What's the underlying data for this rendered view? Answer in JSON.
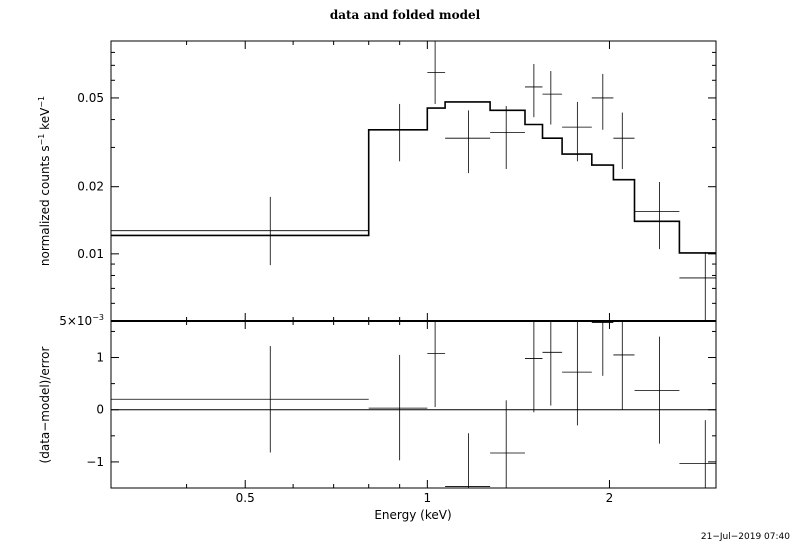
{
  "chart_data": [
    {
      "type": "line",
      "panel": "top",
      "title": "data and folded model",
      "xlabel": "",
      "ylabel": "normalized counts s",
      "ylabel_sup1": "−1",
      "ylabel_mid": " keV",
      "ylabel_sup2": "−1",
      "x_scale": "log",
      "y_scale": "log",
      "xlim": [
        0.3,
        3.0
      ],
      "ylim": [
        0.005,
        0.09
      ],
      "y_ticks": [
        {
          "value": 0.005,
          "label": "5×10",
          "exp": "−3"
        },
        {
          "value": 0.01,
          "label": "0.01",
          "exp": ""
        },
        {
          "value": 0.02,
          "label": "0.02",
          "exp": ""
        },
        {
          "value": 0.05,
          "label": "0.05",
          "exp": ""
        }
      ],
      "data_points": [
        {
          "x": 0.55,
          "xlo": 0.3,
          "xhi": 0.8,
          "y": 0.0127,
          "ylo": 0.0089,
          "yhi": 0.018
        },
        {
          "x": 0.9,
          "xlo": 0.8,
          "xhi": 1.0,
          "y": 0.036,
          "ylo": 0.026,
          "yhi": 0.047
        },
        {
          "x": 1.03,
          "xlo": 1.0,
          "xhi": 1.07,
          "y": 0.065,
          "ylo": 0.047,
          "yhi": 0.09
        },
        {
          "x": 1.17,
          "xlo": 1.07,
          "xhi": 1.27,
          "y": 0.033,
          "ylo": 0.023,
          "yhi": 0.044
        },
        {
          "x": 1.35,
          "xlo": 1.27,
          "xhi": 1.45,
          "y": 0.035,
          "ylo": 0.024,
          "yhi": 0.046
        },
        {
          "x": 1.5,
          "xlo": 1.45,
          "xhi": 1.55,
          "y": 0.056,
          "ylo": 0.041,
          "yhi": 0.071
        },
        {
          "x": 1.6,
          "xlo": 1.55,
          "xhi": 1.67,
          "y": 0.052,
          "ylo": 0.038,
          "yhi": 0.066
        },
        {
          "x": 1.77,
          "xlo": 1.67,
          "xhi": 1.87,
          "y": 0.037,
          "ylo": 0.026,
          "yhi": 0.048
        },
        {
          "x": 1.95,
          "xlo": 1.87,
          "xhi": 2.03,
          "y": 0.05,
          "ylo": 0.036,
          "yhi": 0.064
        },
        {
          "x": 2.1,
          "xlo": 2.03,
          "xhi": 2.2,
          "y": 0.033,
          "ylo": 0.024,
          "yhi": 0.043
        },
        {
          "x": 2.42,
          "xlo": 2.2,
          "xhi": 2.61,
          "y": 0.0155,
          "ylo": 0.0105,
          "yhi": 0.021
        },
        {
          "x": 2.88,
          "xlo": 2.61,
          "xhi": 3.0,
          "y": 0.0078,
          "ylo": 0.005,
          "yhi": 0.0102
        }
      ],
      "model_steps": [
        {
          "xlo": 0.3,
          "xhi": 0.8,
          "y": 0.0121
        },
        {
          "xlo": 0.8,
          "xhi": 1.0,
          "y": 0.036
        },
        {
          "xlo": 1.0,
          "xhi": 1.07,
          "y": 0.045
        },
        {
          "xlo": 1.07,
          "xhi": 1.27,
          "y": 0.048
        },
        {
          "xlo": 1.27,
          "xhi": 1.45,
          "y": 0.044
        },
        {
          "xlo": 1.45,
          "xhi": 1.55,
          "y": 0.038
        },
        {
          "xlo": 1.55,
          "xhi": 1.67,
          "y": 0.033
        },
        {
          "xlo": 1.67,
          "xhi": 1.87,
          "y": 0.028
        },
        {
          "xlo": 1.87,
          "xhi": 2.03,
          "y": 0.025
        },
        {
          "xlo": 2.03,
          "xhi": 2.2,
          "y": 0.0215
        },
        {
          "xlo": 2.2,
          "xhi": 2.61,
          "y": 0.014
        },
        {
          "xlo": 2.61,
          "xhi": 3.0,
          "y": 0.0101
        }
      ]
    },
    {
      "type": "scatter",
      "panel": "bottom",
      "xlabel": "Energy (keV)",
      "ylabel": "(data−model)/error",
      "x_scale": "log",
      "xlim": [
        0.3,
        3.0
      ],
      "ylim": [
        -1.5,
        1.7
      ],
      "x_ticks": [
        {
          "value": 0.5,
          "label": "0.5"
        },
        {
          "value": 1,
          "label": "1"
        },
        {
          "value": 2,
          "label": "2"
        }
      ],
      "y_ticks": [
        {
          "value": -1,
          "label": "−1"
        },
        {
          "value": 0,
          "label": "0"
        },
        {
          "value": 1,
          "label": "1"
        }
      ],
      "zero_line": 0,
      "residuals": [
        {
          "x": 0.55,
          "xlo": 0.3,
          "xhi": 0.8,
          "y": 0.2,
          "ylo": -0.82,
          "yhi": 1.22
        },
        {
          "x": 0.9,
          "xlo": 0.8,
          "xhi": 1.0,
          "y": 0.03,
          "ylo": -0.97,
          "yhi": 1.05
        },
        {
          "x": 1.03,
          "xlo": 1.0,
          "xhi": 1.07,
          "y": 1.08,
          "ylo": 0.05,
          "yhi": 1.7
        },
        {
          "x": 1.17,
          "xlo": 1.07,
          "xhi": 1.27,
          "y": -1.47,
          "ylo": -1.5,
          "yhi": -0.45
        },
        {
          "x": 1.35,
          "xlo": 1.27,
          "xhi": 1.45,
          "y": -0.83,
          "ylo": -1.5,
          "yhi": 0.18
        },
        {
          "x": 1.5,
          "xlo": 1.45,
          "xhi": 1.55,
          "y": 0.98,
          "ylo": -0.05,
          "yhi": 1.7
        },
        {
          "x": 1.6,
          "xlo": 1.55,
          "xhi": 1.67,
          "y": 1.1,
          "ylo": 0.08,
          "yhi": 1.7
        },
        {
          "x": 1.77,
          "xlo": 1.67,
          "xhi": 1.87,
          "y": 0.72,
          "ylo": -0.3,
          "yhi": 1.7
        },
        {
          "x": 1.95,
          "xlo": 1.87,
          "xhi": 2.03,
          "y": 1.67,
          "ylo": 0.65,
          "yhi": 1.7
        },
        {
          "x": 2.1,
          "xlo": 2.03,
          "xhi": 2.2,
          "y": 1.05,
          "ylo": 0.0,
          "yhi": 1.7
        },
        {
          "x": 2.42,
          "xlo": 2.2,
          "xhi": 2.61,
          "y": 0.37,
          "ylo": -0.65,
          "yhi": 1.4
        },
        {
          "x": 2.88,
          "xlo": 2.61,
          "xhi": 3.0,
          "y": -1.03,
          "ylo": -1.5,
          "yhi": -0.2
        }
      ]
    }
  ],
  "timestamp": "21−Jul−2019 07:40"
}
